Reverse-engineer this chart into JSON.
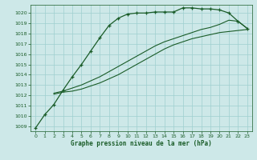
{
  "title": "Graphe pression niveau de la mer (hPa)",
  "bg_color": "#cde8e8",
  "grid_color": "#9ecfcf",
  "line_color": "#1a5c28",
  "xlim": [
    -0.5,
    23.5
  ],
  "ylim": [
    1008.5,
    1020.8
  ],
  "yticks": [
    1009,
    1010,
    1011,
    1012,
    1013,
    1014,
    1015,
    1016,
    1017,
    1018,
    1019,
    1020
  ],
  "xticks": [
    0,
    1,
    2,
    3,
    4,
    5,
    6,
    7,
    8,
    9,
    10,
    11,
    12,
    13,
    14,
    15,
    16,
    17,
    18,
    19,
    20,
    21,
    22,
    23
  ],
  "line1_x": [
    0,
    1,
    2,
    3,
    4,
    5,
    6,
    7,
    8,
    9,
    10,
    11,
    12,
    13,
    14,
    15,
    16,
    17,
    18,
    19,
    20,
    21,
    22,
    23
  ],
  "line1_y": [
    1008.8,
    1010.1,
    1011.1,
    1012.5,
    1013.8,
    1015.0,
    1016.3,
    1017.6,
    1018.8,
    1019.5,
    1019.9,
    1020.0,
    1020.0,
    1020.1,
    1020.1,
    1020.1,
    1020.5,
    1020.5,
    1020.4,
    1020.4,
    1020.3,
    1020.0,
    1019.2,
    1018.5
  ],
  "line2_x": [
    2,
    3,
    4,
    5,
    6,
    7,
    8,
    9,
    10,
    11,
    12,
    13,
    14,
    15,
    16,
    17,
    18,
    19,
    20,
    21,
    22,
    23
  ],
  "line2_y": [
    1012.1,
    1012.3,
    1012.4,
    1012.6,
    1012.9,
    1013.2,
    1013.6,
    1014.0,
    1014.5,
    1015.0,
    1015.5,
    1016.0,
    1016.5,
    1016.9,
    1017.2,
    1017.5,
    1017.7,
    1017.9,
    1018.1,
    1018.2,
    1018.3,
    1018.4
  ],
  "line3_x": [
    2,
    3,
    4,
    5,
    6,
    7,
    8,
    9,
    10,
    11,
    12,
    13,
    14,
    15,
    16,
    17,
    18,
    19,
    20,
    21,
    22,
    23
  ],
  "line3_y": [
    1012.2,
    1012.4,
    1012.7,
    1013.0,
    1013.4,
    1013.8,
    1014.3,
    1014.8,
    1015.3,
    1015.8,
    1016.3,
    1016.8,
    1017.2,
    1017.5,
    1017.8,
    1018.1,
    1018.4,
    1018.6,
    1018.9,
    1019.3,
    1019.2,
    1018.5
  ]
}
